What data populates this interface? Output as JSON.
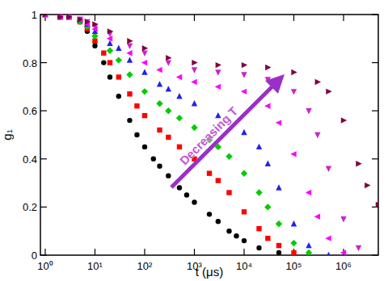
{
  "chart_data": {
    "type": "scatter",
    "xlabel": "t (μs)",
    "ylabel": "g₁",
    "log": "x",
    "xlim": [
      0.8,
      5000000
    ],
    "ylim": [
      0,
      1
    ],
    "xticks": [
      {
        "value": 1,
        "label": "10⁰"
      },
      {
        "value": 10,
        "label": "10¹"
      },
      {
        "value": 100,
        "label": "10²"
      },
      {
        "value": 1000,
        "label": "10³"
      },
      {
        "value": 10000,
        "label": "10⁴"
      },
      {
        "value": 100000,
        "label": "10⁵"
      },
      {
        "value": 1000000,
        "label": "10⁶"
      }
    ],
    "yticks": [
      0,
      0.2,
      0.4,
      0.6,
      0.8,
      1
    ],
    "annotations": [
      {
        "text": "Decreasing T",
        "color": "#9b30c8"
      }
    ],
    "series": [
      {
        "color": "#000000",
        "marker": "circle",
        "x": [
          1,
          2,
          3,
          5,
          7,
          10,
          15,
          20,
          30,
          50,
          70,
          100,
          150,
          200,
          300,
          500,
          700,
          1000,
          2000,
          3000,
          5000,
          7000,
          10000,
          20000,
          50000
        ],
        "values": [
          1,
          0.99,
          0.99,
          0.97,
          0.93,
          0.87,
          0.8,
          0.74,
          0.66,
          0.56,
          0.5,
          0.45,
          0.4,
          0.37,
          0.33,
          0.28,
          0.25,
          0.22,
          0.17,
          0.14,
          0.1,
          0.08,
          0.06,
          0.03,
          0.01
        ]
      },
      {
        "color": "#ff0000",
        "marker": "square",
        "x": [
          1,
          2,
          3,
          5,
          7,
          10,
          15,
          20,
          30,
          50,
          70,
          100,
          200,
          300,
          500,
          1000,
          2000,
          3000,
          5000,
          10000,
          20000,
          30000,
          50000,
          100000
        ],
        "values": [
          1,
          0.99,
          0.99,
          0.97,
          0.94,
          0.89,
          0.84,
          0.8,
          0.74,
          0.67,
          0.62,
          0.58,
          0.52,
          0.49,
          0.45,
          0.4,
          0.34,
          0.31,
          0.26,
          0.18,
          0.11,
          0.07,
          0.04,
          0.01
        ]
      },
      {
        "color": "#00cc00",
        "marker": "diamond",
        "x": [
          1,
          2,
          3,
          5,
          7,
          10,
          20,
          30,
          50,
          100,
          200,
          300,
          500,
          1000,
          2000,
          3000,
          5000,
          10000,
          20000,
          30000,
          50000,
          100000,
          200000
        ],
        "values": [
          1,
          0.99,
          0.99,
          0.97,
          0.95,
          0.91,
          0.85,
          0.81,
          0.75,
          0.68,
          0.63,
          0.6,
          0.57,
          0.53,
          0.48,
          0.45,
          0.41,
          0.34,
          0.26,
          0.2,
          0.13,
          0.05,
          0.01
        ]
      },
      {
        "color": "#2222ee",
        "marker": "triangle-up",
        "x": [
          1,
          2,
          3,
          5,
          7,
          10,
          20,
          30,
          50,
          100,
          200,
          300,
          500,
          1000,
          3000,
          10000,
          20000,
          30000,
          50000,
          100000,
          200000,
          500000
        ],
        "values": [
          1,
          0.99,
          0.99,
          0.98,
          0.96,
          0.93,
          0.88,
          0.86,
          0.81,
          0.76,
          0.71,
          0.69,
          0.66,
          0.63,
          0.58,
          0.51,
          0.45,
          0.38,
          0.28,
          0.13,
          0.04,
          0
        ]
      },
      {
        "color": "#ff00ff",
        "marker": "triangle-left",
        "x": [
          1,
          2,
          3,
          5,
          7,
          10,
          20,
          50,
          100,
          200,
          500,
          1000,
          3000,
          10000,
          30000,
          50000,
          100000,
          200000,
          300000,
          500000,
          1000000
        ],
        "values": [
          1,
          0.99,
          0.99,
          0.98,
          0.96,
          0.94,
          0.9,
          0.84,
          0.8,
          0.77,
          0.74,
          0.72,
          0.7,
          0.68,
          0.62,
          0.55,
          0.42,
          0.26,
          0.16,
          0.07,
          0.01
        ]
      },
      {
        "color": "#cc22cc",
        "marker": "triangle-down",
        "x": [
          1,
          2,
          3,
          5,
          7,
          10,
          20,
          50,
          100,
          300,
          1000,
          3000,
          10000,
          30000,
          100000,
          200000,
          300000,
          500000,
          1000000,
          2000000
        ],
        "values": [
          1,
          0.99,
          0.99,
          0.98,
          0.97,
          0.95,
          0.92,
          0.87,
          0.84,
          0.8,
          0.77,
          0.76,
          0.75,
          0.73,
          0.68,
          0.6,
          0.5,
          0.36,
          0.15,
          0.03
        ]
      },
      {
        "color": "#800040",
        "marker": "triangle-right",
        "x": [
          1,
          2,
          3,
          5,
          7,
          10,
          20,
          50,
          100,
          300,
          1000,
          3000,
          10000,
          30000,
          100000,
          300000,
          500000,
          1000000,
          2000000,
          3000000,
          5000000
        ],
        "values": [
          1,
          0.99,
          0.99,
          0.98,
          0.97,
          0.96,
          0.93,
          0.89,
          0.86,
          0.82,
          0.8,
          0.79,
          0.79,
          0.78,
          0.76,
          0.72,
          0.68,
          0.56,
          0.38,
          0.29,
          0.21
        ]
      }
    ]
  }
}
